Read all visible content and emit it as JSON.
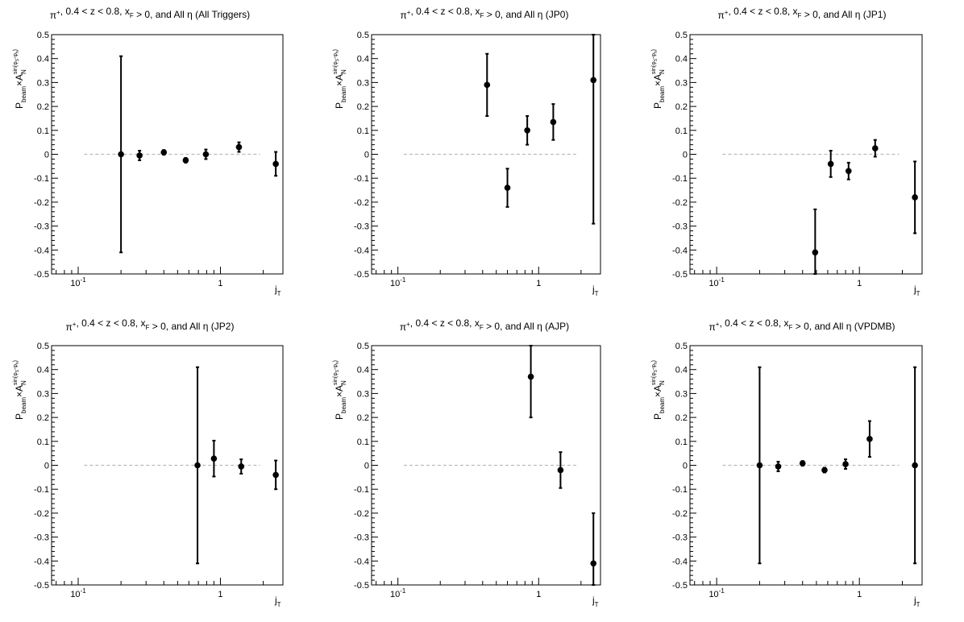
{
  "figure": {
    "pads": [
      {
        "title": "π⁺, 0.4 < z < 0.8, x_F > 0, and All η (All Triggers)",
        "title_parts": [
          {
            "t": "π"
          },
          {
            "t": "+",
            "sup": true
          },
          {
            "t": ", 0.4 < z < 0.8, x"
          },
          {
            "t": "F",
            "sub": true
          },
          {
            "t": " > 0, and All η (All Triggers)"
          }
        ]
      },
      {
        "title": "π⁺, 0.4 < z < 0.8, x_F > 0, and All η (JP0)",
        "title_parts": [
          {
            "t": "π"
          },
          {
            "t": "+",
            "sup": true
          },
          {
            "t": ", 0.4 < z < 0.8, x"
          },
          {
            "t": "F",
            "sub": true
          },
          {
            "t": " > 0, and All η (JP0)"
          }
        ]
      },
      {
        "title": "π⁺, 0.4 < z < 0.8, x_F > 0, and All η (JP1)",
        "title_parts": [
          {
            "t": "π"
          },
          {
            "t": "+",
            "sup": true
          },
          {
            "t": ", 0.4 < z < 0.8, x"
          },
          {
            "t": "F",
            "sub": true
          },
          {
            "t": " > 0, and All η (JP1)"
          }
        ]
      },
      {
        "title": "π⁺, 0.4 < z < 0.8, x_F > 0, and All η (JP2)",
        "title_parts": [
          {
            "t": "π"
          },
          {
            "t": "+",
            "sup": true
          },
          {
            "t": ", 0.4 < z < 0.8, x"
          },
          {
            "t": "F",
            "sub": true
          },
          {
            "t": " > 0, and All η (JP2)"
          }
        ]
      },
      {
        "title": "π⁺, 0.4 < z < 0.8, x_F > 0, and All η (AJP)",
        "title_parts": [
          {
            "t": "π"
          },
          {
            "t": "+",
            "sup": true
          },
          {
            "t": ", 0.4 < z < 0.8, x"
          },
          {
            "t": "F",
            "sub": true
          },
          {
            "t": " > 0, and All η (AJP)"
          }
        ]
      },
      {
        "title": "π⁺, 0.4 < z < 0.8, x_F > 0, and All η (VPDMB)",
        "title_parts": [
          {
            "t": "π"
          },
          {
            "t": "+",
            "sup": true
          },
          {
            "t": ", 0.4 < z < 0.8, x"
          },
          {
            "t": "F",
            "sub": true
          },
          {
            "t": " > 0, and All η (VPDMB)"
          }
        ]
      }
    ]
  },
  "chart_data": [
    {
      "type": "scatter",
      "title": "π⁺, 0.4 < z < 0.8, x_F > 0, and All η (All Triggers)",
      "xlabel": "j_T",
      "ylabel": "P_beam × A_N^sin(φ_S − φ_h)",
      "xscale": "log",
      "xlim": [
        0.065,
        2.75
      ],
      "ylim": [
        -0.5,
        0.5
      ],
      "x_tick_labels": [
        "10⁻¹",
        "1"
      ],
      "y_ticks": [
        -0.5,
        -0.4,
        -0.3,
        -0.2,
        -0.1,
        0,
        0.1,
        0.2,
        0.3,
        0.4,
        0.5
      ],
      "reference_line": {
        "y": 0,
        "x_range": [
          0.11,
          1.9
        ],
        "style": "dashed",
        "color": "#bbbbbb"
      },
      "points": [
        {
          "x": 0.2,
          "y": 0.0,
          "err": 0.41
        },
        {
          "x": 0.27,
          "y": -0.005,
          "err": 0.02
        },
        {
          "x": 0.4,
          "y": 0.008,
          "err": 0.01
        },
        {
          "x": 0.57,
          "y": -0.025,
          "err": 0.01
        },
        {
          "x": 0.79,
          "y": 0.0,
          "err": 0.02
        },
        {
          "x": 1.35,
          "y": 0.03,
          "err": 0.02
        },
        {
          "x": 2.45,
          "y": -0.04,
          "err": 0.05
        }
      ]
    },
    {
      "type": "scatter",
      "title": "π⁺, 0.4 < z < 0.8, x_F > 0, and All η (JP0)",
      "xlabel": "j_T",
      "ylabel": "P_beam × A_N^sin(φ_S − φ_h)",
      "xscale": "log",
      "xlim": [
        0.065,
        2.75
      ],
      "ylim": [
        -0.5,
        0.5
      ],
      "x_tick_labels": [
        "10⁻¹",
        "1"
      ],
      "y_ticks": [
        -0.5,
        -0.4,
        -0.3,
        -0.2,
        -0.1,
        0,
        0.1,
        0.2,
        0.3,
        0.4,
        0.5
      ],
      "reference_line": {
        "y": 0,
        "x_range": [
          0.11,
          1.9
        ],
        "style": "dashed",
        "color": "#bbbbbb"
      },
      "points": [
        {
          "x": 0.43,
          "y": 0.29,
          "err": 0.13
        },
        {
          "x": 0.6,
          "y": -0.14,
          "err": 0.08
        },
        {
          "x": 0.83,
          "y": 0.1,
          "err": 0.06
        },
        {
          "x": 1.27,
          "y": 0.135,
          "err": 0.075
        },
        {
          "x": 2.45,
          "y": 0.31,
          "err": 0.6
        }
      ]
    },
    {
      "type": "scatter",
      "title": "π⁺, 0.4 < z < 0.8, x_F > 0, and All η (JP1)",
      "xlabel": "j_T",
      "ylabel": "P_beam × A_N^sin(φ_S − φ_h)",
      "xscale": "log",
      "xlim": [
        0.065,
        2.75
      ],
      "ylim": [
        -0.5,
        0.5
      ],
      "x_tick_labels": [
        "10⁻¹",
        "1"
      ],
      "y_ticks": [
        -0.5,
        -0.4,
        -0.3,
        -0.2,
        -0.1,
        0,
        0.1,
        0.2,
        0.3,
        0.4,
        0.5
      ],
      "reference_line": {
        "y": 0,
        "x_range": [
          0.11,
          1.9
        ],
        "style": "dashed",
        "color": "#bbbbbb"
      },
      "points": [
        {
          "x": 0.49,
          "y": -0.41,
          "err": 0.18
        },
        {
          "x": 0.63,
          "y": -0.04,
          "err": 0.055
        },
        {
          "x": 0.84,
          "y": -0.07,
          "err": 0.035
        },
        {
          "x": 1.29,
          "y": 0.025,
          "err": 0.035
        },
        {
          "x": 2.45,
          "y": -0.18,
          "err": 0.15
        }
      ]
    },
    {
      "type": "scatter",
      "title": "π⁺, 0.4 < z < 0.8, x_F > 0, and All η (JP2)",
      "xlabel": "j_T",
      "ylabel": "P_beam × A_N^sin(φ_S − φ_h)",
      "xscale": "log",
      "xlim": [
        0.065,
        2.75
      ],
      "ylim": [
        -0.5,
        0.5
      ],
      "x_tick_labels": [
        "10⁻¹",
        "1"
      ],
      "y_ticks": [
        -0.5,
        -0.4,
        -0.3,
        -0.2,
        -0.1,
        0,
        0.1,
        0.2,
        0.3,
        0.4,
        0.5
      ],
      "reference_line": {
        "y": 0,
        "x_range": [
          0.11,
          1.9
        ],
        "style": "dashed",
        "color": "#bbbbbb"
      },
      "points": [
        {
          "x": 0.69,
          "y": 0.0,
          "err": 0.41
        },
        {
          "x": 0.9,
          "y": 0.028,
          "err": 0.075
        },
        {
          "x": 1.4,
          "y": -0.005,
          "err": 0.03
        },
        {
          "x": 2.45,
          "y": -0.04,
          "err": 0.06
        }
      ]
    },
    {
      "type": "scatter",
      "title": "π⁺, 0.4 < z < 0.8, x_F > 0, and All η (AJP)",
      "xlabel": "j_T",
      "ylabel": "P_beam × A_N^sin(φ_S − φ_h)",
      "xscale": "log",
      "xlim": [
        0.065,
        2.75
      ],
      "ylim": [
        -0.5,
        0.5
      ],
      "x_tick_labels": [
        "10⁻¹",
        "1"
      ],
      "y_ticks": [
        -0.5,
        -0.4,
        -0.3,
        -0.2,
        -0.1,
        0,
        0.1,
        0.2,
        0.3,
        0.4,
        0.5
      ],
      "reference_line": {
        "y": 0,
        "x_range": [
          0.11,
          1.9
        ],
        "style": "dashed",
        "color": "#bbbbbb"
      },
      "points": [
        {
          "x": 0.88,
          "y": 0.37,
          "err": 0.17
        },
        {
          "x": 1.43,
          "y": -0.02,
          "err": 0.075
        },
        {
          "x": 2.45,
          "y": -0.41,
          "err": 0.21
        }
      ]
    },
    {
      "type": "scatter",
      "title": "π⁺, 0.4 < z < 0.8, x_F > 0, and All η (VPDMB)",
      "xlabel": "j_T",
      "ylabel": "P_beam × A_N^sin(φ_S − φ_h)",
      "xscale": "log",
      "xlim": [
        0.065,
        2.75
      ],
      "ylim": [
        -0.5,
        0.5
      ],
      "x_tick_labels": [
        "10⁻¹",
        "1"
      ],
      "y_ticks": [
        -0.5,
        -0.4,
        -0.3,
        -0.2,
        -0.1,
        0,
        0.1,
        0.2,
        0.3,
        0.4,
        0.5
      ],
      "reference_line": {
        "y": 0,
        "x_range": [
          0.11,
          1.9
        ],
        "style": "dashed",
        "color": "#bbbbbb"
      },
      "points": [
        {
          "x": 0.2,
          "y": 0.0,
          "err": 0.41
        },
        {
          "x": 0.27,
          "y": -0.005,
          "err": 0.02
        },
        {
          "x": 0.4,
          "y": 0.008,
          "err": 0.01
        },
        {
          "x": 0.57,
          "y": -0.02,
          "err": 0.01
        },
        {
          "x": 0.8,
          "y": 0.005,
          "err": 0.02
        },
        {
          "x": 1.18,
          "y": 0.11,
          "err": 0.075
        },
        {
          "x": 2.45,
          "y": 0.0,
          "err": 0.41
        }
      ]
    }
  ]
}
